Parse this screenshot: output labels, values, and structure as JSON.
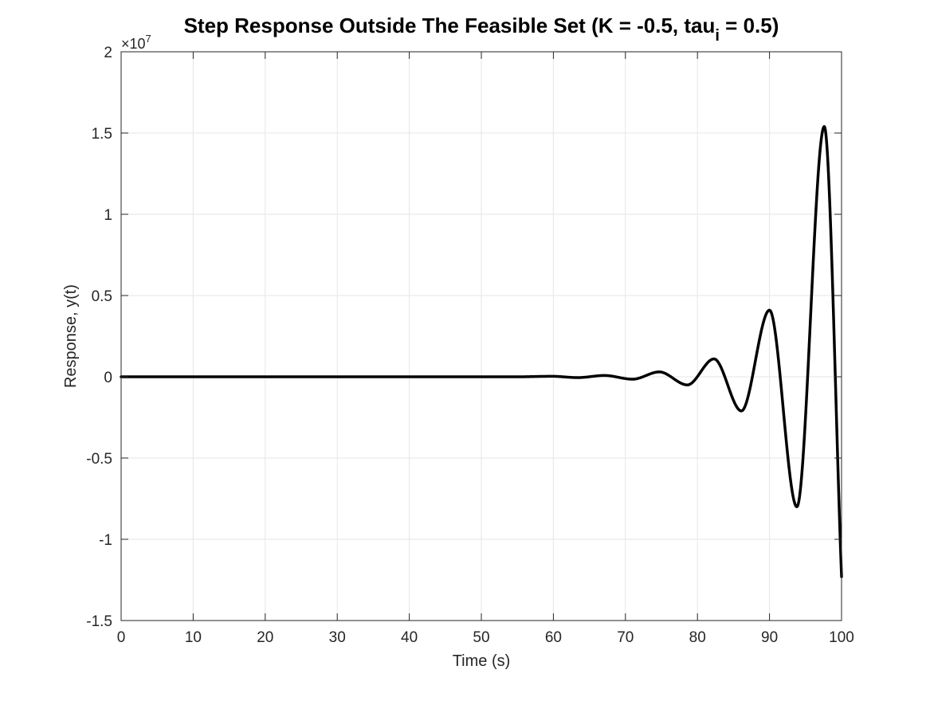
{
  "chart_data": {
    "type": "line",
    "title": "Step Response Outside The Feasible Set (K = -0.5, tau",
    "title_subscript": "i",
    "title_suffix": " = 0.5)",
    "xlabel": "Time (s)",
    "ylabel": "Response, y(t)",
    "xlim": [
      0,
      100
    ],
    "ylim": [
      -15000000,
      20000000
    ],
    "y_exponent_label": "×10",
    "y_exponent_power": "7",
    "xticks": [
      0,
      10,
      20,
      30,
      40,
      50,
      60,
      70,
      80,
      90,
      100
    ],
    "xtick_labels": [
      "0",
      "10",
      "20",
      "30",
      "40",
      "50",
      "60",
      "70",
      "80",
      "90",
      "100"
    ],
    "yticks": [
      -15000000,
      -10000000,
      -5000000,
      0,
      5000000,
      10000000,
      15000000,
      20000000
    ],
    "ytick_labels": [
      "-1.5",
      "-1",
      "-0.5",
      "0",
      "0.5",
      "1",
      "1.5",
      "2"
    ],
    "grid": true,
    "line_color": "#000000",
    "grid_color": "#e6e6e6",
    "series": [
      {
        "x": [
          0,
          55,
          59.8,
          63.4,
          67.1,
          71.0,
          74.7,
          78.6,
          82.3,
          86.1,
          90.0,
          93.8,
          97.6,
          100
        ],
        "y": [
          0,
          0,
          30000,
          -50000,
          80000,
          -150000,
          300000,
          -500000,
          1100000,
          -2100000,
          4100000,
          -8000000,
          15400000,
          -12300000
        ]
      }
    ]
  }
}
